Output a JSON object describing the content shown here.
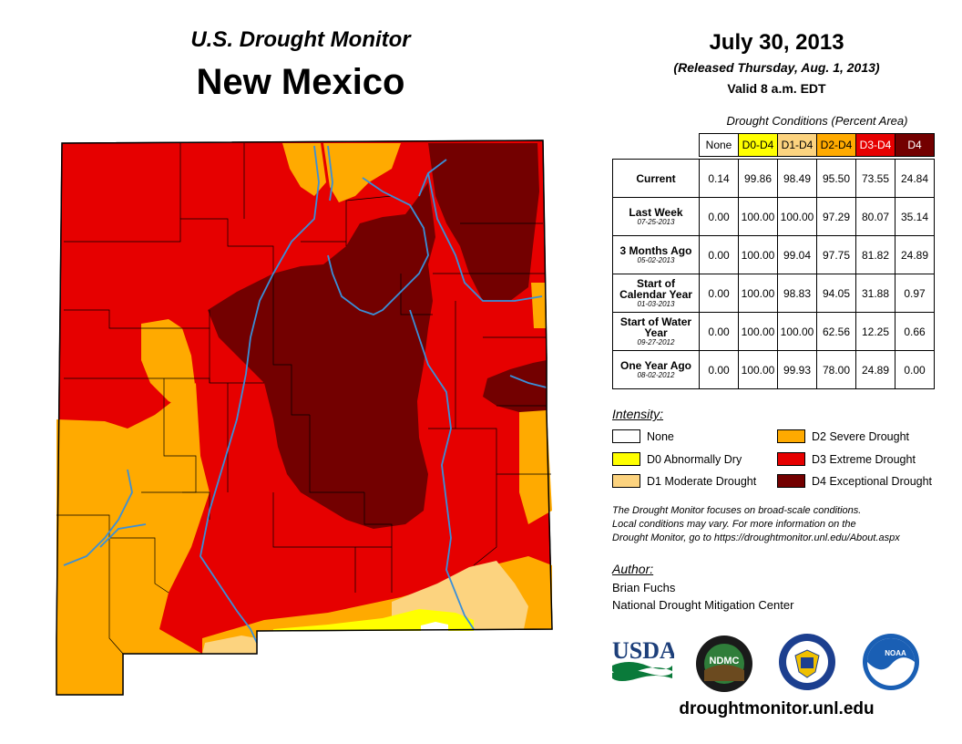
{
  "header": {
    "subtitle": "U.S. Drought Monitor",
    "title": "New Mexico",
    "date": "July 30, 2013",
    "released": "(Released Thursday, Aug. 1, 2013)",
    "valid": "Valid 8 a.m. EDT"
  },
  "table": {
    "caption": "Drought Conditions (Percent Area)",
    "columns": [
      "None",
      "D0-D4",
      "D1-D4",
      "D2-D4",
      "D3-D4",
      "D4"
    ],
    "rows": [
      {
        "label": "Current",
        "date": "",
        "values": [
          "0.14",
          "99.86",
          "98.49",
          "95.50",
          "73.55",
          "24.84"
        ]
      },
      {
        "label": "Last Week",
        "date": "07-25-2013",
        "values": [
          "0.00",
          "100.00",
          "100.00",
          "97.29",
          "80.07",
          "35.14"
        ]
      },
      {
        "label": "3 Months Ago",
        "date": "05-02-2013",
        "values": [
          "0.00",
          "100.00",
          "99.04",
          "97.75",
          "81.82",
          "24.89"
        ]
      },
      {
        "label": "Start of Calendar Year",
        "date": "01-03-2013",
        "values": [
          "0.00",
          "100.00",
          "98.83",
          "94.05",
          "31.88",
          "0.97"
        ]
      },
      {
        "label": "Start of Water Year",
        "date": "09-27-2012",
        "values": [
          "0.00",
          "100.00",
          "100.00",
          "62.56",
          "12.25",
          "0.66"
        ]
      },
      {
        "label": "One Year Ago",
        "date": "08-02-2012",
        "values": [
          "0.00",
          "100.00",
          "99.93",
          "78.00",
          "24.89",
          "0.00"
        ]
      }
    ]
  },
  "legend": {
    "title": "Intensity:",
    "items": [
      {
        "label": "None",
        "color": "#ffffff"
      },
      {
        "label": "D0 Abnormally Dry",
        "color": "#ffff00"
      },
      {
        "label": "D1 Moderate Drought",
        "color": "#fcd37f"
      },
      {
        "label": "D2 Severe Drought",
        "color": "#ffaa00"
      },
      {
        "label": "D3 Extreme Drought",
        "color": "#e60000"
      },
      {
        "label": "D4 Exceptional Drought",
        "color": "#730000"
      }
    ]
  },
  "note": {
    "line1": "The Drought Monitor focuses on broad-scale conditions.",
    "line2": "Local conditions may vary. For more information on the",
    "line3": "Drought Monitor, go to https://droughtmonitor.unl.edu/About.aspx"
  },
  "author": {
    "title": "Author:",
    "name": "Brian Fuchs",
    "org": "National Drought Mitigation Center"
  },
  "logos": {
    "usda": "USDA",
    "ndmc": "NDMC",
    "noaa": "NOAA"
  },
  "website": "droughtmonitor.unl.edu",
  "colors": {
    "none": "#ffffff",
    "d0": "#ffff00",
    "d1": "#fcd37f",
    "d2": "#ffaa00",
    "d3": "#e60000",
    "d4": "#730000",
    "river": "#3a8fd8"
  }
}
